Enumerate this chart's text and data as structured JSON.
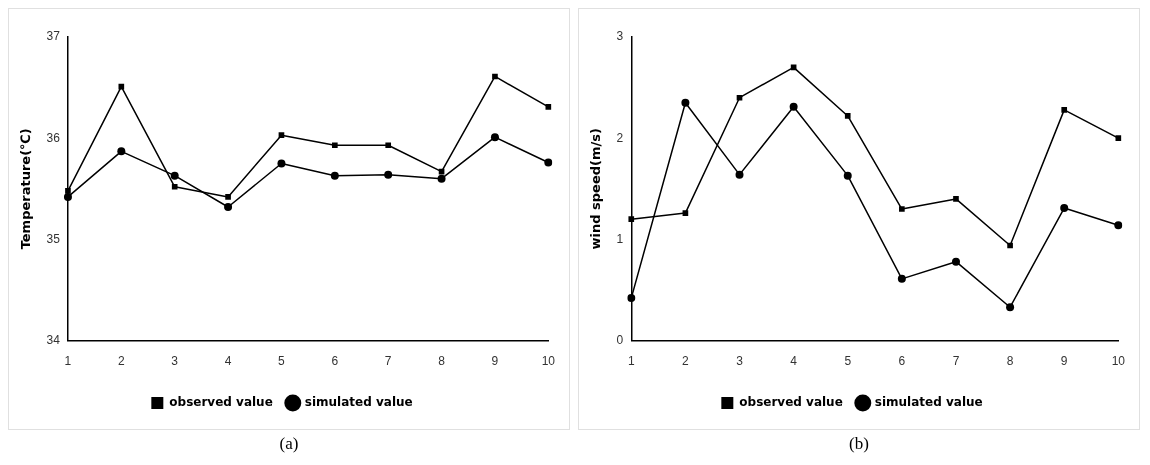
{
  "chart_data": [
    {
      "type": "line",
      "categories": [
        "1",
        "2",
        "3",
        "4",
        "5",
        "6",
        "7",
        "8",
        "9",
        "10"
      ],
      "ylabel": "Temperature(℃)",
      "ylim": [
        34,
        37
      ],
      "yticks": [
        34,
        35,
        36,
        37
      ],
      "grid": false,
      "legend": "bottom",
      "annotations": [
        "(a)"
      ],
      "series": [
        {
          "name": "observed value",
          "color": "#000000",
          "marker": "square",
          "values": [
            35.48,
            36.51,
            35.52,
            35.42,
            36.03,
            35.93,
            35.93,
            35.67,
            36.61,
            36.31
          ]
        },
        {
          "name": "simulated value",
          "color": "#000000",
          "marker": "circle",
          "values": [
            35.42,
            35.87,
            35.63,
            35.32,
            35.75,
            35.63,
            35.64,
            35.6,
            36.01,
            35.76
          ]
        }
      ]
    },
    {
      "type": "line",
      "categories": [
        "1",
        "2",
        "3",
        "4",
        "5",
        "6",
        "7",
        "8",
        "9",
        "10"
      ],
      "ylabel": "wind speed(m/s)",
      "ylim": [
        0,
        3
      ],
      "yticks": [
        0,
        1,
        2,
        3
      ],
      "grid": false,
      "legend": "bottom",
      "annotations": [
        "(b)"
      ],
      "series": [
        {
          "name": "observed value",
          "color": "#000000",
          "marker": "square",
          "values": [
            1.2,
            1.26,
            2.4,
            2.7,
            2.22,
            1.3,
            1.4,
            0.94,
            2.28,
            2.0
          ]
        },
        {
          "name": "simulated value",
          "color": "#000000",
          "marker": "circle",
          "values": [
            0.42,
            2.35,
            1.64,
            2.31,
            1.63,
            0.61,
            0.78,
            0.33,
            1.31,
            1.14
          ]
        }
      ]
    }
  ]
}
